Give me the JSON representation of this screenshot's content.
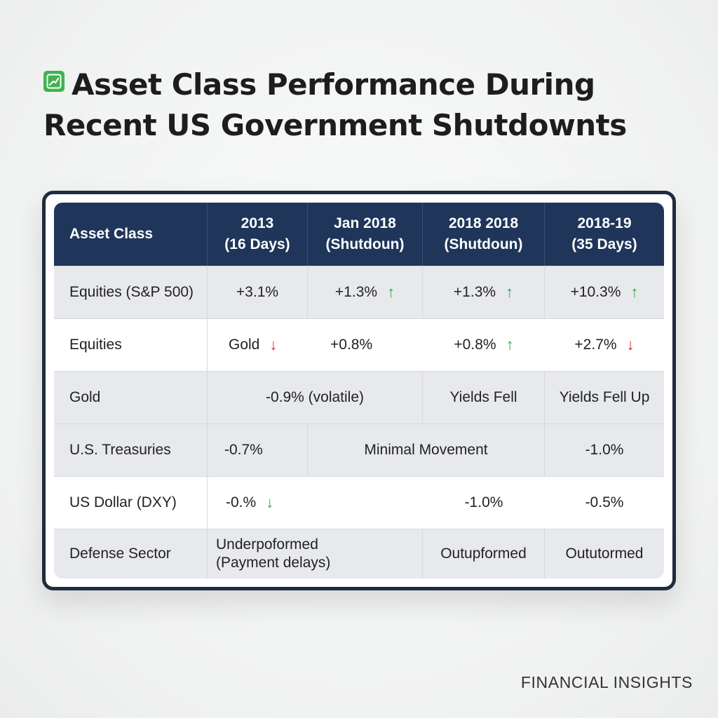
{
  "title": {
    "line1": "Asset Class Performance During",
    "line2": "Recent US Government Shutdownts",
    "icon": "chart-up-icon",
    "icon_color": "#3fb34f"
  },
  "table": {
    "header": {
      "col0": "Asset Class",
      "col1_l1": "2013",
      "col1_l2": "(16 Days)",
      "col2_l1": "Jan 2018",
      "col2_l2": "(Shutdoun)",
      "col3_l1": "2018 2018",
      "col3_l2": "(Shutdoun)",
      "col4_l1": "2018-19",
      "col4_l2": "(35 Days)"
    },
    "rows": [
      {
        "asset": "Equities (S&P 500)",
        "c1": "+3.1%",
        "c2": "+1.3%",
        "c2_arrow": "↑",
        "c3": "+1.3%",
        "c3_arrow": "↑",
        "c4": "+10.3%",
        "c4_arrow": "↑"
      },
      {
        "asset": "Equities",
        "c1": "Gold",
        "c1_arrow": "↓",
        "c2": "+0.8%",
        "c3": "+0.8%",
        "c3_arrow": "↑",
        "c4": "+2.7%",
        "c4_arrow": "↓"
      },
      {
        "asset": "Gold",
        "c12": "-0.9% (volatile)",
        "c3": "Yields Fell",
        "c4": "Yields Fell Up"
      },
      {
        "asset": "U.S. Treasuries",
        "c1": "-0.7%",
        "c23": "Minimal Movement",
        "c4": "-1.0%"
      },
      {
        "asset": "US Dollar (DXY)",
        "c1": "-0.%",
        "c1_arrow": "↓",
        "c3": "-1.0%",
        "c4": "-0.5%"
      },
      {
        "asset": "Defense Sector",
        "c12_l1": "Underpoformed",
        "c12_l2": "(Payment delays)",
        "c3": "Outupformed",
        "c4": "Oututormed"
      }
    ]
  },
  "colors": {
    "header_bg": "#1f355a",
    "border": "#1f2c3f",
    "up": "#3aa64a",
    "down": "#d8272c"
  },
  "footer": "FINANCIAL INSIGHTS"
}
